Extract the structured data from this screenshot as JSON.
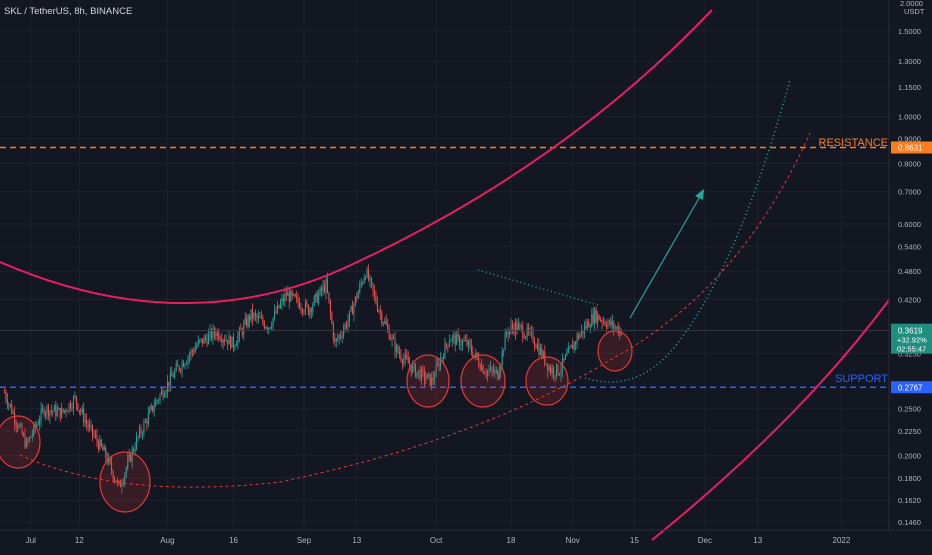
{
  "header": {
    "symbol_title": "SKL / TetherUS, 8h, BINANCE",
    "currency_unit": "USDT",
    "top_tick": "2.0000"
  },
  "annotations": {
    "resistance_label": "RESISTANCE",
    "support_label": "SUPPORT"
  },
  "price_labels": {
    "resistance": "0.8631",
    "support": "0.2767",
    "last_price": "0.3619",
    "change": "+32.92%",
    "countdown": "02:55:47"
  },
  "colors": {
    "background": "#131722",
    "grid": "#1e222d",
    "axis_text": "#b2b5be",
    "candle_up": "#26a69a",
    "candle_down": "#ef5350",
    "resistance": "#ff7d1f",
    "support": "#2962ff",
    "arc": "#e91e63",
    "circles": "#e53935",
    "arrow": "#26a69a",
    "last_price_bg": "#1f8e7f"
  },
  "chart_data": {
    "type": "candlestick",
    "title": "SKL / TetherUS, 8h, BINANCE",
    "y_scale": "log",
    "ylim": [
      0.146,
      1.65
    ],
    "y_ticks": [
      "1.5000",
      "1.3000",
      "1.1500",
      "1.0000",
      "0.9000",
      "0.8000",
      "0.7000",
      "0.6000",
      "0.5400",
      "0.4800",
      "0.4200",
      "0.3250",
      "0.2500",
      "0.2250",
      "0.2000",
      "0.1800",
      "0.1620",
      "0.1460"
    ],
    "x_ticks": [
      "Jul",
      "12",
      "Aug",
      "16",
      "Sep",
      "13",
      "Oct",
      "18",
      "Nov",
      "15",
      "Dec",
      "13",
      "2022"
    ],
    "price_series_approx": [
      {
        "date": "2021-06-25",
        "price": 0.27
      },
      {
        "date": "2021-06-30",
        "price": 0.21
      },
      {
        "date": "2021-07-04",
        "price": 0.25
      },
      {
        "date": "2021-07-08",
        "price": 0.245
      },
      {
        "date": "2021-07-11",
        "price": 0.262
      },
      {
        "date": "2021-07-14",
        "price": 0.23
      },
      {
        "date": "2021-07-18",
        "price": 0.2
      },
      {
        "date": "2021-07-21",
        "price": 0.172
      },
      {
        "date": "2021-07-25",
        "price": 0.215
      },
      {
        "date": "2021-07-29",
        "price": 0.255
      },
      {
        "date": "2021-08-03",
        "price": 0.3
      },
      {
        "date": "2021-08-08",
        "price": 0.34
      },
      {
        "date": "2021-08-12",
        "price": 0.36
      },
      {
        "date": "2021-08-16",
        "price": 0.34
      },
      {
        "date": "2021-08-20",
        "price": 0.39
      },
      {
        "date": "2021-08-24",
        "price": 0.37
      },
      {
        "date": "2021-08-28",
        "price": 0.43
      },
      {
        "date": "2021-09-02",
        "price": 0.4
      },
      {
        "date": "2021-09-06",
        "price": 0.45
      },
      {
        "date": "2021-09-08",
        "price": 0.34
      },
      {
        "date": "2021-09-11",
        "price": 0.38
      },
      {
        "date": "2021-09-15",
        "price": 0.48
      },
      {
        "date": "2021-09-18",
        "price": 0.4
      },
      {
        "date": "2021-09-22",
        "price": 0.33
      },
      {
        "date": "2021-09-26",
        "price": 0.3
      },
      {
        "date": "2021-09-30",
        "price": 0.285
      },
      {
        "date": "2021-10-04",
        "price": 0.35
      },
      {
        "date": "2021-10-08",
        "price": 0.34
      },
      {
        "date": "2021-10-12",
        "price": 0.3
      },
      {
        "date": "2021-10-15",
        "price": 0.295
      },
      {
        "date": "2021-10-17",
        "price": 0.36
      },
      {
        "date": "2021-10-19",
        "price": 0.37
      },
      {
        "date": "2021-10-23",
        "price": 0.35
      },
      {
        "date": "2021-10-27",
        "price": 0.3
      },
      {
        "date": "2021-10-29",
        "price": 0.3
      },
      {
        "date": "2021-11-02",
        "price": 0.35
      },
      {
        "date": "2021-11-06",
        "price": 0.39
      },
      {
        "date": "2021-11-09",
        "price": 0.375
      },
      {
        "date": "2021-11-12",
        "price": 0.3619
      }
    ],
    "horizontal_lines": [
      {
        "label": "RESISTANCE",
        "price": 0.8631
      },
      {
        "label": "SUPPORT",
        "price": 0.2767
      }
    ],
    "last_price": 0.3619,
    "change_pct": "+32.92%"
  }
}
